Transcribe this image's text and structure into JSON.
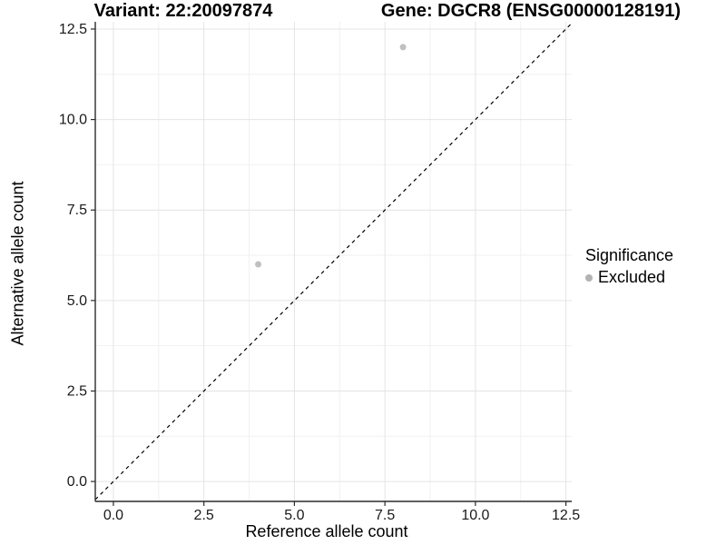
{
  "chart_data": {
    "type": "scatter",
    "title_left": "Variant: 22:20097874",
    "title_right": "Gene: DGCR8 (ENSG00000128191)",
    "xlabel": "Reference allele count",
    "ylabel": "Alternative allele count",
    "xlim": [
      -0.5,
      12.66
    ],
    "ylim": [
      -0.55,
      12.7
    ],
    "x_ticks": [
      0,
      2.5,
      5,
      7.5,
      10,
      12.5
    ],
    "x_tick_labels": [
      "0.0",
      "2.5",
      "5.0",
      "7.5",
      "10.0",
      "12.5"
    ],
    "y_ticks": [
      0,
      2.5,
      5,
      7.5,
      10,
      12.5
    ],
    "y_tick_labels": [
      "0.0",
      "2.5",
      "5.0",
      "7.5",
      "10.0",
      "12.5"
    ],
    "minor_ticks": [
      1.25,
      3.75,
      6.25,
      8.75,
      11.25
    ],
    "grid": "major+minor",
    "series": [
      {
        "name": "Excluded",
        "color": "#c0c0c0",
        "points": [
          {
            "x": 4,
            "y": 6
          },
          {
            "x": 8,
            "y": 12
          }
        ]
      }
    ],
    "identity_line": {
      "style": "dashed",
      "color": "#000000"
    },
    "legend": {
      "title": "Significance",
      "position": "right",
      "items": [
        {
          "label": "Excluded",
          "color": "#b3b3b3",
          "marker": "circle"
        }
      ]
    },
    "colors": {
      "background": "#ffffff",
      "grid_major": "#e4e4e4",
      "grid_minor": "#f1f1f1",
      "axis_line": "#2b2b2b",
      "tick_label": "#1a1a1a"
    }
  }
}
